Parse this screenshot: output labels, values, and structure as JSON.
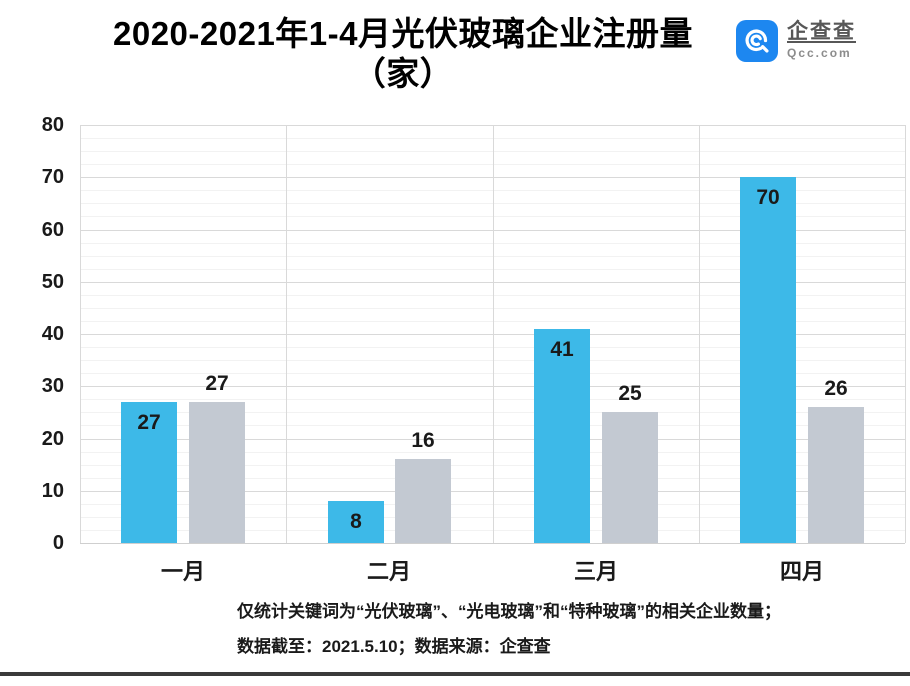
{
  "header": {
    "title_line1": "2020-2021年1-4月光伏玻璃企业注册量",
    "title_line2": "（家）",
    "logo": {
      "icon": "qcc-spiral-icon",
      "name": "企查查",
      "domain": "Qcc.com",
      "color": "#1d87f0"
    }
  },
  "chart_data": {
    "type": "bar",
    "title": "2020-2021年1-4月光伏玻璃企业注册量（家）",
    "categories": [
      "一月",
      "二月",
      "三月",
      "四月"
    ],
    "series": [
      {
        "name": "blue",
        "color": "#3db9e8",
        "values": [
          27,
          8,
          41,
          70
        ],
        "label_position": "inside-top"
      },
      {
        "name": "gray",
        "color": "#c3c9d2",
        "values": [
          27,
          16,
          25,
          26
        ],
        "label_position": "above"
      }
    ],
    "ylim": [
      0,
      80
    ],
    "yticks": [
      0,
      10,
      20,
      30,
      40,
      50,
      60,
      70,
      80
    ],
    "minor_grid_step": 2.5,
    "grid": true,
    "legend": "none",
    "xlabel": "",
    "ylabel": ""
  },
  "footer": {
    "note_line1": "仅统计关键词为“光伏玻璃”、“光电玻璃”和“特种玻璃”的相关企业数量；",
    "note_line2": "数据截至：2021.5.10；数据来源：企查查"
  }
}
